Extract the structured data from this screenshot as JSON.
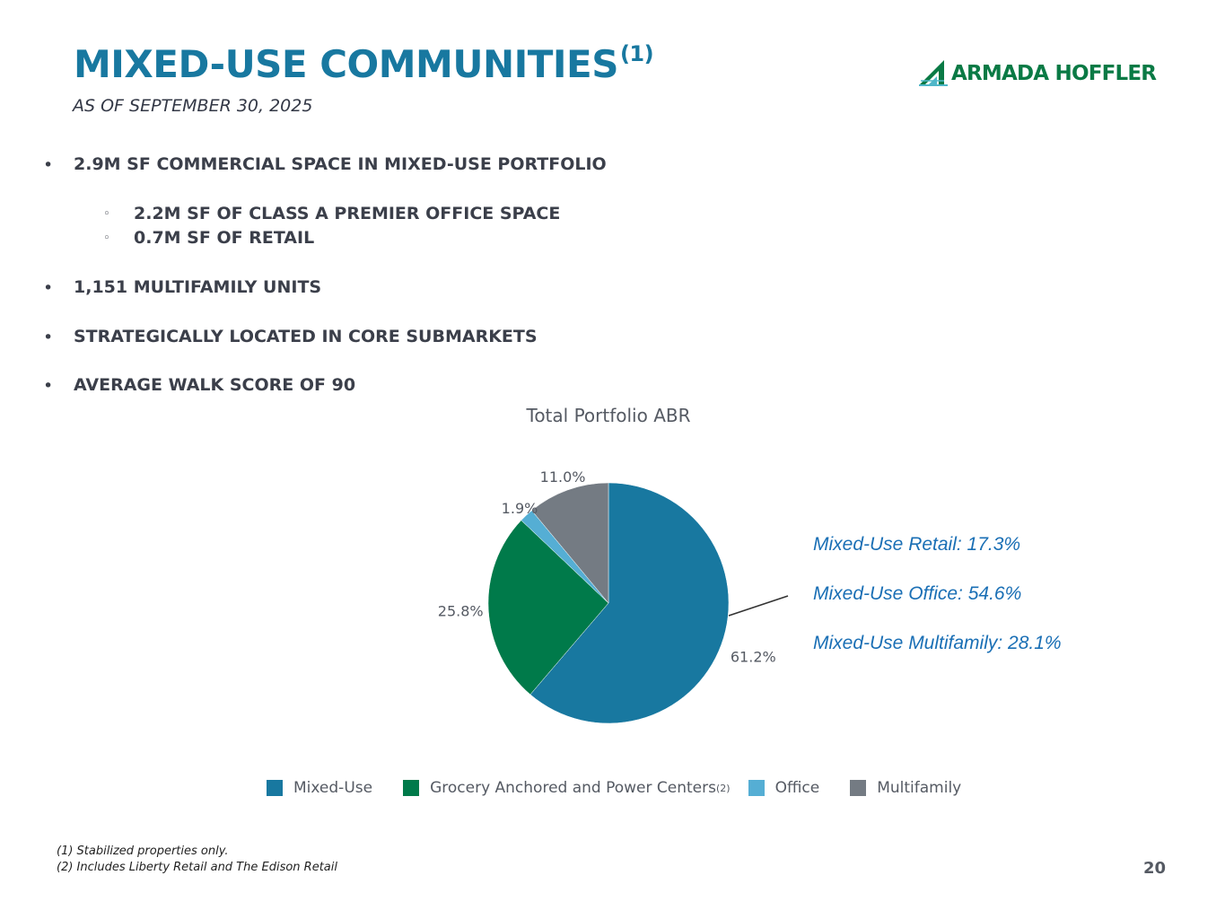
{
  "header": {
    "title": "MIXED-USE COMMUNITIES",
    "title_sup": "(1)",
    "subtitle": "AS OF SEPTEMBER 30, 2025",
    "logo_text": "ARMADA HOFFLER",
    "logo_icon": "armada-hoffler-logo-icon"
  },
  "bullets": [
    {
      "text": "2.9M SF COMMERCIAL SPACE IN MIXED-USE PORTFOLIO",
      "level": 1
    },
    {
      "text": "2.2M SF OF CLASS A PREMIER OFFICE SPACE",
      "level": 2
    },
    {
      "text": "0.7M SF OF RETAIL",
      "level": 2
    },
    {
      "text": "1,151 MULTIFAMILY UNITS",
      "level": 1
    },
    {
      "text": "STRATEGICALLY LOCATED IN CORE SUBMARKETS",
      "level": 1
    },
    {
      "text": "AVERAGE WALK SCORE OF 90",
      "level": 1
    }
  ],
  "chart_data": {
    "type": "pie",
    "title": "Total Portfolio ABR",
    "categories": [
      "Mixed-Use",
      "Grocery Anchored and Power Centers",
      "Office",
      "Multifamily"
    ],
    "legend_sup": [
      "",
      "(2)",
      "",
      ""
    ],
    "values": [
      61.2,
      25.8,
      1.9,
      11.0
    ],
    "labels": [
      "61.2%",
      "25.8%",
      "1.9%",
      "11.0%"
    ],
    "colors": [
      "#1878a0",
      "#007a4a",
      "#55aed4",
      "#747b83"
    ],
    "legend_position": "bottom",
    "callouts": [
      "Mixed-Use Retail: 17.3%",
      "Mixed-Use Office: 54.6%",
      "Mixed-Use Multifamily: 28.1%"
    ]
  },
  "footnotes": [
    "(1) Stabilized properties only.",
    "(2) Includes Liberty Retail and The Edison Retail"
  ],
  "page_number": "20"
}
